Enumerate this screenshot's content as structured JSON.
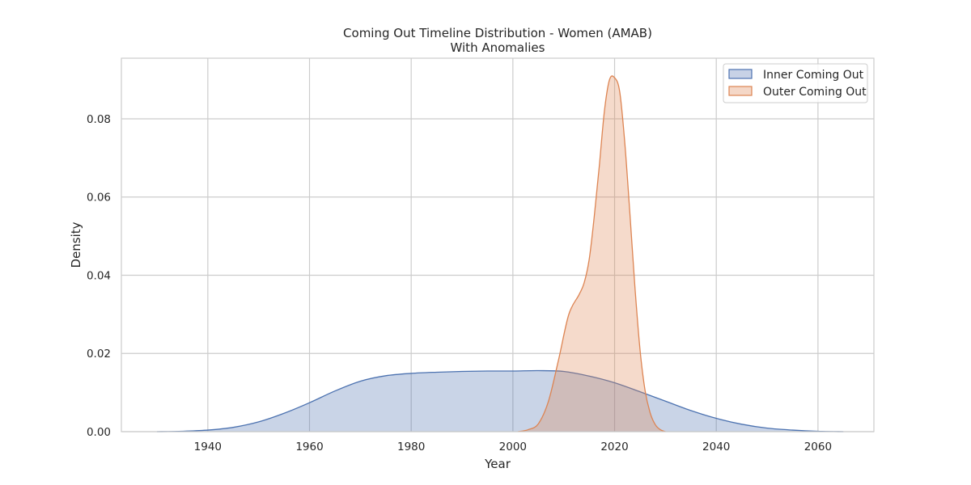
{
  "chart_data": {
    "type": "area",
    "title": "Coming Out Timeline Distribution - Women (AMAB)",
    "subtitle": "With Anomalies",
    "xlabel": "Year",
    "ylabel": "Density",
    "xlim": [
      1923,
      2071
    ],
    "ylim": [
      0,
      0.0955
    ],
    "xticks": [
      1940,
      1960,
      1980,
      2000,
      2020,
      2040,
      2060
    ],
    "yticks": [
      0.0,
      0.02,
      0.04,
      0.06,
      0.08
    ],
    "ytick_labels": [
      "0.00",
      "0.02",
      "0.04",
      "0.06",
      "0.08"
    ],
    "grid": true,
    "legend_position": "top-right",
    "series": [
      {
        "name": "Inner Coming Out",
        "color": "#4c72b0",
        "fill": "#c8d2e6",
        "x": [
          1930,
          1935,
          1940,
          1945,
          1950,
          1955,
          1960,
          1965,
          1970,
          1975,
          1980,
          1985,
          1990,
          1995,
          2000,
          2005,
          2010,
          2015,
          2020,
          2025,
          2030,
          2035,
          2040,
          2045,
          2050,
          2055,
          2060,
          2065
        ],
        "y": [
          0.0,
          0.0001,
          0.0004,
          0.0011,
          0.0025,
          0.0047,
          0.0074,
          0.0104,
          0.0129,
          0.0143,
          0.0149,
          0.0152,
          0.0154,
          0.0155,
          0.0155,
          0.0156,
          0.0154,
          0.0142,
          0.0125,
          0.0102,
          0.0078,
          0.0054,
          0.0034,
          0.0019,
          0.0009,
          0.0004,
          0.0001,
          0.0
        ]
      },
      {
        "name": "Outer Coming Out",
        "color": "#dd8452",
        "fill": "#f4d7c7",
        "x": [
          2001,
          2003,
          2005,
          2007,
          2009,
          2011,
          2013,
          2014,
          2015,
          2016,
          2017,
          2018,
          2019,
          2020,
          2021,
          2022,
          2023,
          2024,
          2025,
          2026,
          2027,
          2028,
          2029,
          2030
        ],
        "y": [
          0.0,
          0.0005,
          0.002,
          0.0078,
          0.0185,
          0.03,
          0.035,
          0.038,
          0.044,
          0.055,
          0.068,
          0.082,
          0.09,
          0.0905,
          0.087,
          0.074,
          0.056,
          0.037,
          0.021,
          0.0105,
          0.0048,
          0.0018,
          0.0005,
          0.0
        ]
      }
    ]
  }
}
